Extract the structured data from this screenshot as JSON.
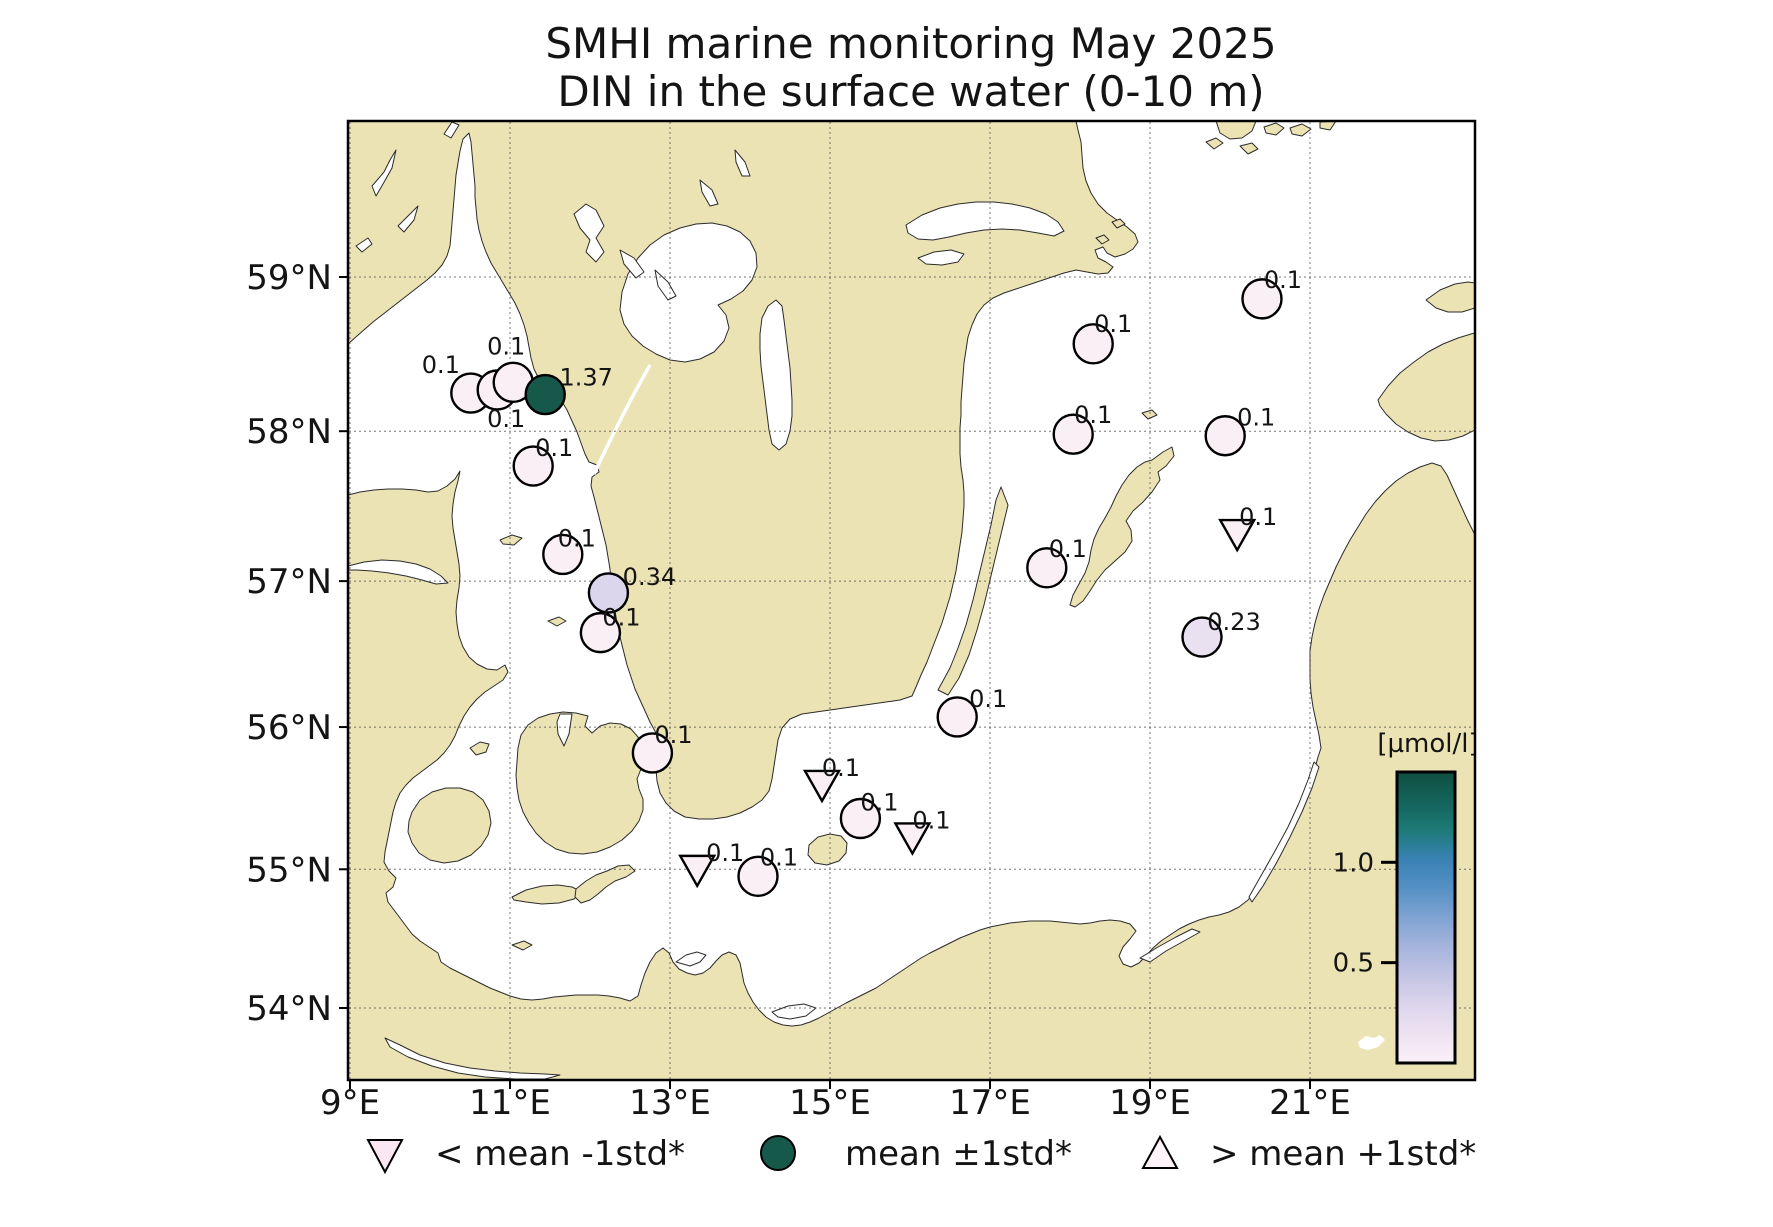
{
  "title": {
    "line1": "SMHI marine monitoring May 2025",
    "line2": "DIN in the surface water (0-10 m)"
  },
  "axes": {
    "lat_ticks": [
      {
        "label": "59°N",
        "deg": 59
      },
      {
        "label": "58°N",
        "deg": 58
      },
      {
        "label": "57°N",
        "deg": 57
      },
      {
        "label": "56°N",
        "deg": 56
      },
      {
        "label": "55°N",
        "deg": 55
      },
      {
        "label": "54°N",
        "deg": 54
      }
    ],
    "lon_ticks": [
      {
        "label": "9°E",
        "deg": 9
      },
      {
        "label": "11°E",
        "deg": 11
      },
      {
        "label": "13°E",
        "deg": 13
      },
      {
        "label": "15°E",
        "deg": 15
      },
      {
        "label": "17°E",
        "deg": 17
      },
      {
        "label": "19°E",
        "deg": 19
      },
      {
        "label": "21°E",
        "deg": 21
      }
    ]
  },
  "colorbar": {
    "unit": "[µmol/l]",
    "vmin": 0,
    "vmax": 1.45,
    "ticks": [
      {
        "label": "1.0",
        "value": 1.0
      },
      {
        "label": "0.5",
        "value": 0.5
      }
    ],
    "gradient": [
      [
        0.0,
        "#0e4e41"
      ],
      [
        0.1,
        "#14635a"
      ],
      [
        0.2,
        "#1d7a78"
      ],
      [
        0.3,
        "#3a82b4"
      ],
      [
        0.4,
        "#5590c5"
      ],
      [
        0.5,
        "#7fa3d2"
      ],
      [
        0.6,
        "#a5b4dc"
      ],
      [
        0.7,
        "#c3c4e4"
      ],
      [
        0.8,
        "#dcd5ec"
      ],
      [
        0.9,
        "#eee2f2"
      ],
      [
        1.0,
        "#faf0f7"
      ]
    ]
  },
  "legend": {
    "items": [
      {
        "marker": "triangle-down",
        "label": "< mean -1std*",
        "fill": "#fbe7f1"
      },
      {
        "marker": "circle",
        "label": "mean ±1std*",
        "fill": "#16594a"
      },
      {
        "marker": "triangle-up",
        "label": "> mean +1std*",
        "fill": "#fdf3f8"
      }
    ]
  },
  "chart_data": {
    "type": "scatter",
    "subtype": "geo-map-stations",
    "title": "SMHI marine monitoring May 2025 — DIN in the surface water (0-10 m)",
    "units": "µmol/l",
    "map_extent": {
      "lon": [
        8.96,
        23.06
      ],
      "lat": [
        53.5,
        60.0
      ]
    },
    "projection": "mercator",
    "marker_meaning": {
      "triangle-down": "< mean -1std*",
      "circle": "mean ±1std*",
      "triangle-up": "> mean +1std*"
    },
    "points": [
      {
        "lon": 10.51,
        "lat": 58.25,
        "value": 0.1,
        "label": "0.1",
        "marker": "circle",
        "fill": "#fbeff6",
        "label_offset": [
          -30,
          -20
        ]
      },
      {
        "lon": 10.84,
        "lat": 58.27,
        "value": 0.1,
        "label": "0.1",
        "marker": "circle",
        "fill": "#fbeff6",
        "label_offset": [
          9,
          37
        ]
      },
      {
        "lon": 11.04,
        "lat": 58.32,
        "value": 0.1,
        "label": "0.1",
        "marker": "circle",
        "fill": "#fbeff6",
        "label_offset": [
          -7,
          -28
        ]
      },
      {
        "lon": 11.44,
        "lat": 58.24,
        "value": 1.37,
        "label": "1.37",
        "marker": "circle",
        "fill": "#16594a",
        "label_offset": [
          41,
          -9
        ]
      },
      {
        "lon": 11.29,
        "lat": 57.77,
        "value": 0.1,
        "label": "0.1",
        "marker": "circle",
        "fill": "#fbeff6",
        "label_offset": [
          21,
          -10
        ]
      },
      {
        "lon": 11.66,
        "lat": 57.18,
        "value": 0.1,
        "label": "0.1",
        "marker": "circle",
        "fill": "#fbeff6",
        "label_offset": [
          14,
          -8
        ]
      },
      {
        "lon": 12.23,
        "lat": 56.92,
        "value": 0.34,
        "label": "0.34",
        "marker": "circle",
        "fill": "#dcd6ec",
        "label_offset": [
          41,
          -8
        ]
      },
      {
        "lon": 12.13,
        "lat": 56.65,
        "value": 0.1,
        "label": "0.1",
        "marker": "circle",
        "fill": "#fbeff6",
        "label_offset": [
          21,
          -7
        ]
      },
      {
        "lon": 12.78,
        "lat": 55.82,
        "value": 0.1,
        "label": "0.1",
        "marker": "circle",
        "fill": "#fbeff6",
        "label_offset": [
          21,
          -10
        ]
      },
      {
        "lon": 13.34,
        "lat": 55.01,
        "value": 0.1,
        "label": "0.1",
        "marker": "triangle-down",
        "fill": "#fbeff6",
        "label_offset": [
          28,
          -7
        ]
      },
      {
        "lon": 14.1,
        "lat": 54.95,
        "value": 0.1,
        "label": "0.1",
        "marker": "circle",
        "fill": "#fbeff6",
        "label_offset": [
          21,
          -11
        ]
      },
      {
        "lon": 14.9,
        "lat": 55.61,
        "value": 0.1,
        "label": "0.1",
        "marker": "triangle-down",
        "fill": "#fbeff6",
        "label_offset": [
          19,
          -7
        ]
      },
      {
        "lon": 15.38,
        "lat": 55.36,
        "value": 0.1,
        "label": "0.1",
        "marker": "circle",
        "fill": "#fbeff6",
        "label_offset": [
          19,
          -8
        ]
      },
      {
        "lon": 16.03,
        "lat": 55.24,
        "value": 0.1,
        "label": "0.1",
        "marker": "triangle-down",
        "fill": "#fbeff6",
        "label_offset": [
          19,
          -7
        ]
      },
      {
        "lon": 16.59,
        "lat": 56.07,
        "value": 0.1,
        "label": "0.1",
        "marker": "circle",
        "fill": "#fbeff6",
        "label_offset": [
          31,
          -10
        ]
      },
      {
        "lon": 17.71,
        "lat": 57.09,
        "value": 0.1,
        "label": "0.1",
        "marker": "circle",
        "fill": "#fbeff6",
        "label_offset": [
          21,
          -11
        ]
      },
      {
        "lon": 19.65,
        "lat": 56.62,
        "value": 0.23,
        "label": "0.23",
        "marker": "circle",
        "fill": "#e9e0f0",
        "label_offset": [
          32,
          -7
        ]
      },
      {
        "lon": 20.09,
        "lat": 57.33,
        "value": 0.1,
        "label": "0.1",
        "marker": "triangle-down",
        "fill": "#fbeff6",
        "label_offset": [
          21,
          -7
        ]
      },
      {
        "lon": 18.04,
        "lat": 57.98,
        "value": 0.1,
        "label": "0.1",
        "marker": "circle",
        "fill": "#fbeff6",
        "label_offset": [
          20,
          -11
        ]
      },
      {
        "lon": 19.94,
        "lat": 57.97,
        "value": 0.1,
        "label": "0.1",
        "marker": "circle",
        "fill": "#fbeff6",
        "label_offset": [
          31,
          -10
        ]
      },
      {
        "lon": 18.29,
        "lat": 58.57,
        "value": 0.1,
        "label": "0.1",
        "marker": "circle",
        "fill": "#fbeff6",
        "label_offset": [
          20,
          -12
        ]
      },
      {
        "lon": 20.4,
        "lat": 58.86,
        "value": 0.1,
        "label": "0.1",
        "marker": "circle",
        "fill": "#fbeff6",
        "label_offset": [
          21,
          -11
        ]
      }
    ]
  }
}
